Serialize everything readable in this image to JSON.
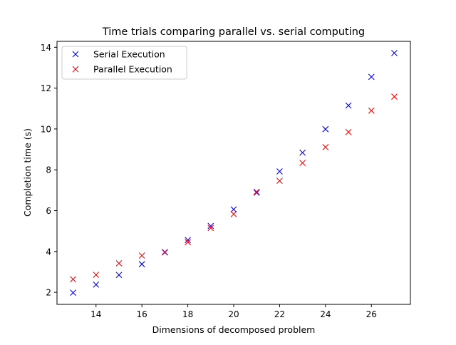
{
  "chart_data": {
    "type": "scatter",
    "title": "Time trials comparing parallel vs. serial computing",
    "xlabel": "Dimensions of decomposed problem",
    "ylabel": "Completion time (s)",
    "xlim": [
      12.3,
      27.7
    ],
    "ylim": [
      1.41,
      14.29
    ],
    "xticks": [
      14,
      16,
      18,
      20,
      22,
      24,
      26
    ],
    "yticks": [
      2,
      4,
      6,
      8,
      10,
      12,
      14
    ],
    "grid": false,
    "legend_position": "top-left",
    "marker": "x",
    "x": [
      13,
      14,
      15,
      16,
      17,
      18,
      19,
      20,
      21,
      22,
      23,
      24,
      25,
      26,
      27
    ],
    "series": [
      {
        "name": "Serial Execution",
        "color": "#0000ff",
        "values": [
          1.98,
          2.38,
          2.85,
          3.38,
          3.97,
          4.56,
          5.25,
          6.06,
          6.88,
          7.92,
          8.84,
          9.99,
          11.15,
          12.55,
          13.72
        ]
      },
      {
        "name": "Parallel Execution",
        "color": "#ff0000",
        "values": [
          2.64,
          2.86,
          3.42,
          3.8,
          3.95,
          4.46,
          5.15,
          5.83,
          6.92,
          7.46,
          8.34,
          9.11,
          9.85,
          10.9,
          11.58
        ]
      }
    ]
  }
}
